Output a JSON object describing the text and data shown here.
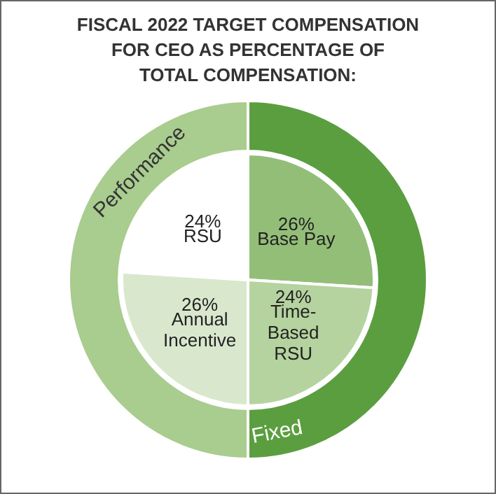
{
  "chart_data": [
    {
      "type": "donut",
      "title": "FISCAL 2022 TARGET COMPENSATION\nFOR CEO AS PERCENTAGE OF\nTOTAL COMPENSATION:",
      "categories": [
        "Fixed",
        "Performance"
      ],
      "values": [
        50,
        50
      ],
      "colors": [
        "#5b9e3f",
        "#a9cc8f"
      ]
    },
    {
      "type": "pie",
      "categories": [
        "Base Pay",
        "Time-Based RSU",
        "Annual Incentive",
        "RSU"
      ],
      "values": [
        26,
        24,
        26,
        24
      ],
      "value_labels": [
        "26%",
        "24%",
        "26%",
        "24%"
      ],
      "colors": [
        "#93be78",
        "#b5d39f",
        "#d9e8cd",
        "#ffffff"
      ]
    }
  ]
}
